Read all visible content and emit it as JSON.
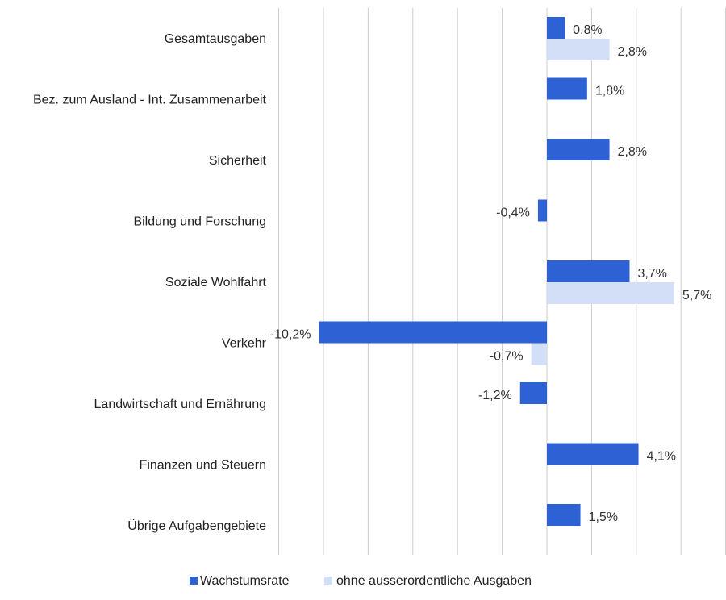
{
  "chart_data": {
    "type": "bar",
    "orientation": "horizontal",
    "categories": [
      "Gesamtausgaben",
      "Bez. zum Ausland - Int. Zusammenarbeit",
      "Sicherheit",
      "Bildung und Forschung",
      "Soziale Wohlfahrt",
      "Verkehr",
      "Landwirtschaft und Ernährung",
      "Finanzen und Steuern",
      "Übrige Aufgabengebiete"
    ],
    "series": [
      {
        "name": "Wachstumsrate",
        "color": "#2e62d4",
        "values": [
          0.8,
          1.8,
          2.8,
          -0.4,
          3.7,
          -10.2,
          -1.2,
          4.1,
          1.5
        ],
        "labels": [
          "0,8%",
          "1,8%",
          "2,8%",
          "-0,4%",
          "3,7%",
          "-10,2%",
          "-1,2%",
          "4,1%",
          "1,5%"
        ]
      },
      {
        "name": "ohne ausserordentliche Ausgaben",
        "color": "#d3dff6",
        "values": [
          2.8,
          null,
          null,
          null,
          5.7,
          -0.7,
          null,
          null,
          null
        ],
        "labels": [
          "2,8%",
          null,
          null,
          null,
          "5,7%",
          "-0,7%",
          null,
          null,
          null
        ]
      }
    ],
    "xlim": [
      -12,
      8
    ],
    "grid": true,
    "legend_position": "bottom"
  }
}
